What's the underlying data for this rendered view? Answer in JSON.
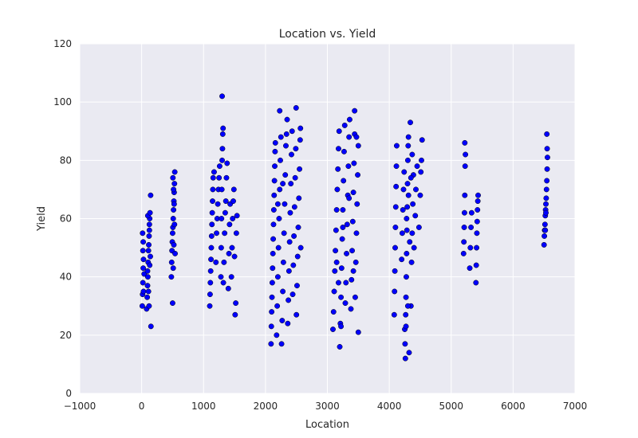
{
  "chart_data": {
    "type": "scatter",
    "title": "Location vs. Yield",
    "xlabel": "Location",
    "ylabel": "Yield",
    "xlim": [
      -1000,
      7000
    ],
    "ylim": [
      0,
      120
    ],
    "x_ticks": [
      -1000,
      0,
      1000,
      2000,
      3000,
      4000,
      5000,
      6000,
      7000
    ],
    "y_ticks": [
      0,
      20,
      40,
      60,
      80,
      100,
      120
    ],
    "grid": true,
    "point_color": "#0000ff",
    "point_edge_color": "#000000",
    "background_color": "#eaeaf2",
    "grid_color": "#ffffff",
    "series": [
      {
        "points": [
          [
            10,
            30
          ],
          [
            15,
            34
          ],
          [
            20,
            38
          ],
          [
            25,
            43
          ],
          [
            30,
            46
          ],
          [
            20,
            49
          ],
          [
            25,
            52
          ],
          [
            15,
            55
          ],
          [
            30,
            35
          ],
          [
            40,
            41
          ],
          [
            80,
            29
          ],
          [
            90,
            33
          ],
          [
            95,
            37
          ],
          [
            100,
            40
          ],
          [
            105,
            45
          ],
          [
            110,
            49
          ],
          [
            115,
            51
          ],
          [
            120,
            54
          ],
          [
            125,
            56
          ],
          [
            130,
            60
          ],
          [
            100,
            61
          ],
          [
            110,
            35
          ],
          [
            120,
            30
          ],
          [
            130,
            44
          ],
          [
            140,
            47
          ],
          [
            150,
            23
          ],
          [
            145,
            68
          ],
          [
            135,
            62
          ],
          [
            125,
            58
          ],
          [
            95,
            42
          ],
          [
            480,
            40
          ],
          [
            485,
            45
          ],
          [
            490,
            49
          ],
          [
            495,
            52
          ],
          [
            500,
            55
          ],
          [
            505,
            57
          ],
          [
            510,
            60
          ],
          [
            515,
            63
          ],
          [
            520,
            66
          ],
          [
            525,
            69
          ],
          [
            530,
            72
          ],
          [
            535,
            76
          ],
          [
            540,
            48
          ],
          [
            500,
            31
          ],
          [
            510,
            43
          ],
          [
            520,
            51
          ],
          [
            530,
            58
          ],
          [
            525,
            65
          ],
          [
            515,
            70
          ],
          [
            505,
            74
          ],
          [
            1100,
            30
          ],
          [
            1105,
            34
          ],
          [
            1110,
            38
          ],
          [
            1115,
            42
          ],
          [
            1120,
            46
          ],
          [
            1125,
            50
          ],
          [
            1130,
            54
          ],
          [
            1135,
            58
          ],
          [
            1140,
            62
          ],
          [
            1145,
            66
          ],
          [
            1150,
            70
          ],
          [
            1155,
            74
          ],
          [
            1170,
            76
          ],
          [
            1200,
            45
          ],
          [
            1210,
            55
          ],
          [
            1220,
            60
          ],
          [
            1230,
            65
          ],
          [
            1240,
            70
          ],
          [
            1250,
            74
          ],
          [
            1260,
            78
          ],
          [
            1280,
            40
          ],
          [
            1285,
            50
          ],
          [
            1290,
            60
          ],
          [
            1295,
            70
          ],
          [
            1300,
            80
          ],
          [
            1305,
            84
          ],
          [
            1310,
            89
          ],
          [
            1315,
            91
          ],
          [
            1300,
            102
          ],
          [
            1320,
            38
          ],
          [
            1330,
            45
          ],
          [
            1340,
            55
          ],
          [
            1350,
            62
          ],
          [
            1360,
            66
          ],
          [
            1370,
            74
          ],
          [
            1380,
            79
          ],
          [
            1400,
            36
          ],
          [
            1410,
            48
          ],
          [
            1420,
            58
          ],
          [
            1430,
            65
          ],
          [
            1450,
            40
          ],
          [
            1460,
            50
          ],
          [
            1470,
            60
          ],
          [
            1480,
            66
          ],
          [
            1490,
            70
          ],
          [
            1500,
            47
          ],
          [
            1510,
            27
          ],
          [
            1520,
            31
          ],
          [
            1530,
            55
          ],
          [
            1540,
            61
          ],
          [
            2090,
            17
          ],
          [
            2095,
            23
          ],
          [
            2100,
            28
          ],
          [
            2105,
            33
          ],
          [
            2110,
            38
          ],
          [
            2115,
            43
          ],
          [
            2120,
            48
          ],
          [
            2125,
            53
          ],
          [
            2130,
            58
          ],
          [
            2135,
            63
          ],
          [
            2140,
            68
          ],
          [
            2145,
            73
          ],
          [
            2150,
            78
          ],
          [
            2155,
            83
          ],
          [
            2160,
            86
          ],
          [
            2180,
            20
          ],
          [
            2190,
            30
          ],
          [
            2200,
            40
          ],
          [
            2210,
            50
          ],
          [
            2220,
            60
          ],
          [
            2230,
            70
          ],
          [
            2240,
            80
          ],
          [
            2250,
            88
          ],
          [
            2230,
            97
          ],
          [
            2260,
            17
          ],
          [
            2270,
            25
          ],
          [
            2280,
            35
          ],
          [
            2290,
            45
          ],
          [
            2300,
            55
          ],
          [
            2310,
            65
          ],
          [
            2320,
            75
          ],
          [
            2330,
            85
          ],
          [
            2340,
            89
          ],
          [
            2350,
            94
          ],
          [
            2360,
            24
          ],
          [
            2370,
            32
          ],
          [
            2380,
            42
          ],
          [
            2390,
            52
          ],
          [
            2400,
            62
          ],
          [
            2410,
            72
          ],
          [
            2420,
            82
          ],
          [
            2430,
            90
          ],
          [
            2440,
            34
          ],
          [
            2450,
            44
          ],
          [
            2460,
            54
          ],
          [
            2470,
            64
          ],
          [
            2480,
            74
          ],
          [
            2490,
            84
          ],
          [
            2495,
            98
          ],
          [
            2500,
            27
          ],
          [
            2510,
            37
          ],
          [
            2520,
            47
          ],
          [
            2530,
            57
          ],
          [
            2540,
            67
          ],
          [
            2550,
            77
          ],
          [
            2560,
            87
          ],
          [
            2565,
            91
          ],
          [
            2570,
            50
          ],
          [
            2200,
            65
          ],
          [
            2280,
            72
          ],
          [
            3090,
            22
          ],
          [
            3100,
            28
          ],
          [
            3110,
            35
          ],
          [
            3120,
            42
          ],
          [
            3130,
            49
          ],
          [
            3140,
            56
          ],
          [
            3150,
            63
          ],
          [
            3160,
            70
          ],
          [
            3170,
            77
          ],
          [
            3180,
            84
          ],
          [
            3190,
            90
          ],
          [
            3200,
            16
          ],
          [
            3210,
            24
          ],
          [
            3220,
            33
          ],
          [
            3230,
            43
          ],
          [
            3240,
            53
          ],
          [
            3250,
            63
          ],
          [
            3260,
            73
          ],
          [
            3270,
            83
          ],
          [
            3280,
            92
          ],
          [
            3290,
            31
          ],
          [
            3300,
            38
          ],
          [
            3310,
            48
          ],
          [
            3320,
            58
          ],
          [
            3330,
            68
          ],
          [
            3340,
            78
          ],
          [
            3350,
            88
          ],
          [
            3360,
            94
          ],
          [
            3380,
            29
          ],
          [
            3390,
            39
          ],
          [
            3400,
            49
          ],
          [
            3410,
            59
          ],
          [
            3420,
            69
          ],
          [
            3430,
            79
          ],
          [
            3440,
            89
          ],
          [
            3440,
            97
          ],
          [
            3450,
            33
          ],
          [
            3460,
            45
          ],
          [
            3470,
            55
          ],
          [
            3480,
            65
          ],
          [
            3490,
            75
          ],
          [
            3500,
            85
          ],
          [
            3500,
            21
          ],
          [
            3150,
            45
          ],
          [
            3250,
            57
          ],
          [
            3350,
            67
          ],
          [
            3180,
            38
          ],
          [
            3220,
            23
          ],
          [
            3420,
            42
          ],
          [
            3470,
            88
          ],
          [
            4080,
            27
          ],
          [
            4085,
            35
          ],
          [
            4090,
            42
          ],
          [
            4095,
            50
          ],
          [
            4100,
            57
          ],
          [
            4105,
            64
          ],
          [
            4110,
            71
          ],
          [
            4115,
            78
          ],
          [
            4120,
            85
          ],
          [
            4200,
            46
          ],
          [
            4210,
            55
          ],
          [
            4220,
            63
          ],
          [
            4230,
            70
          ],
          [
            4240,
            76
          ],
          [
            4250,
            22
          ],
          [
            4255,
            17
          ],
          [
            4260,
            12
          ],
          [
            4265,
            27
          ],
          [
            4270,
            33
          ],
          [
            4275,
            40
          ],
          [
            4280,
            48
          ],
          [
            4285,
            56
          ],
          [
            4290,
            64
          ],
          [
            4295,
            72
          ],
          [
            4300,
            80
          ],
          [
            4305,
            85
          ],
          [
            4310,
            88
          ],
          [
            4340,
            93
          ],
          [
            4350,
            30
          ],
          [
            4360,
            45
          ],
          [
            4370,
            55
          ],
          [
            4380,
            65
          ],
          [
            4390,
            75
          ],
          [
            4400,
            50
          ],
          [
            4420,
            61
          ],
          [
            4430,
            70
          ],
          [
            4450,
            78
          ],
          [
            4480,
            57
          ],
          [
            4500,
            68
          ],
          [
            4510,
            76
          ],
          [
            4520,
            80
          ],
          [
            4530,
            87
          ],
          [
            4320,
            14
          ],
          [
            4270,
            23
          ],
          [
            4300,
            30
          ],
          [
            4330,
            52
          ],
          [
            4280,
            60
          ],
          [
            4310,
            68
          ],
          [
            4350,
            74
          ],
          [
            4370,
            82
          ],
          [
            5200,
            48
          ],
          [
            5205,
            52
          ],
          [
            5210,
            57
          ],
          [
            5215,
            62
          ],
          [
            5220,
            68
          ],
          [
            5225,
            78
          ],
          [
            5230,
            82
          ],
          [
            5220,
            86
          ],
          [
            5300,
            43
          ],
          [
            5310,
            50
          ],
          [
            5320,
            57
          ],
          [
            5330,
            62
          ],
          [
            5400,
            38
          ],
          [
            5405,
            44
          ],
          [
            5410,
            50
          ],
          [
            5415,
            55
          ],
          [
            5420,
            59
          ],
          [
            5425,
            63
          ],
          [
            5430,
            66
          ],
          [
            5435,
            68
          ],
          [
            6500,
            51
          ],
          [
            6505,
            54
          ],
          [
            6510,
            56
          ],
          [
            6515,
            58
          ],
          [
            6520,
            61
          ],
          [
            6525,
            63
          ],
          [
            6530,
            65
          ],
          [
            6535,
            67
          ],
          [
            6540,
            70
          ],
          [
            6545,
            73
          ],
          [
            6550,
            77
          ],
          [
            6555,
            81
          ],
          [
            6550,
            84
          ],
          [
            6545,
            89
          ],
          [
            6520,
            56
          ],
          [
            6530,
            62
          ]
        ]
      }
    ]
  }
}
